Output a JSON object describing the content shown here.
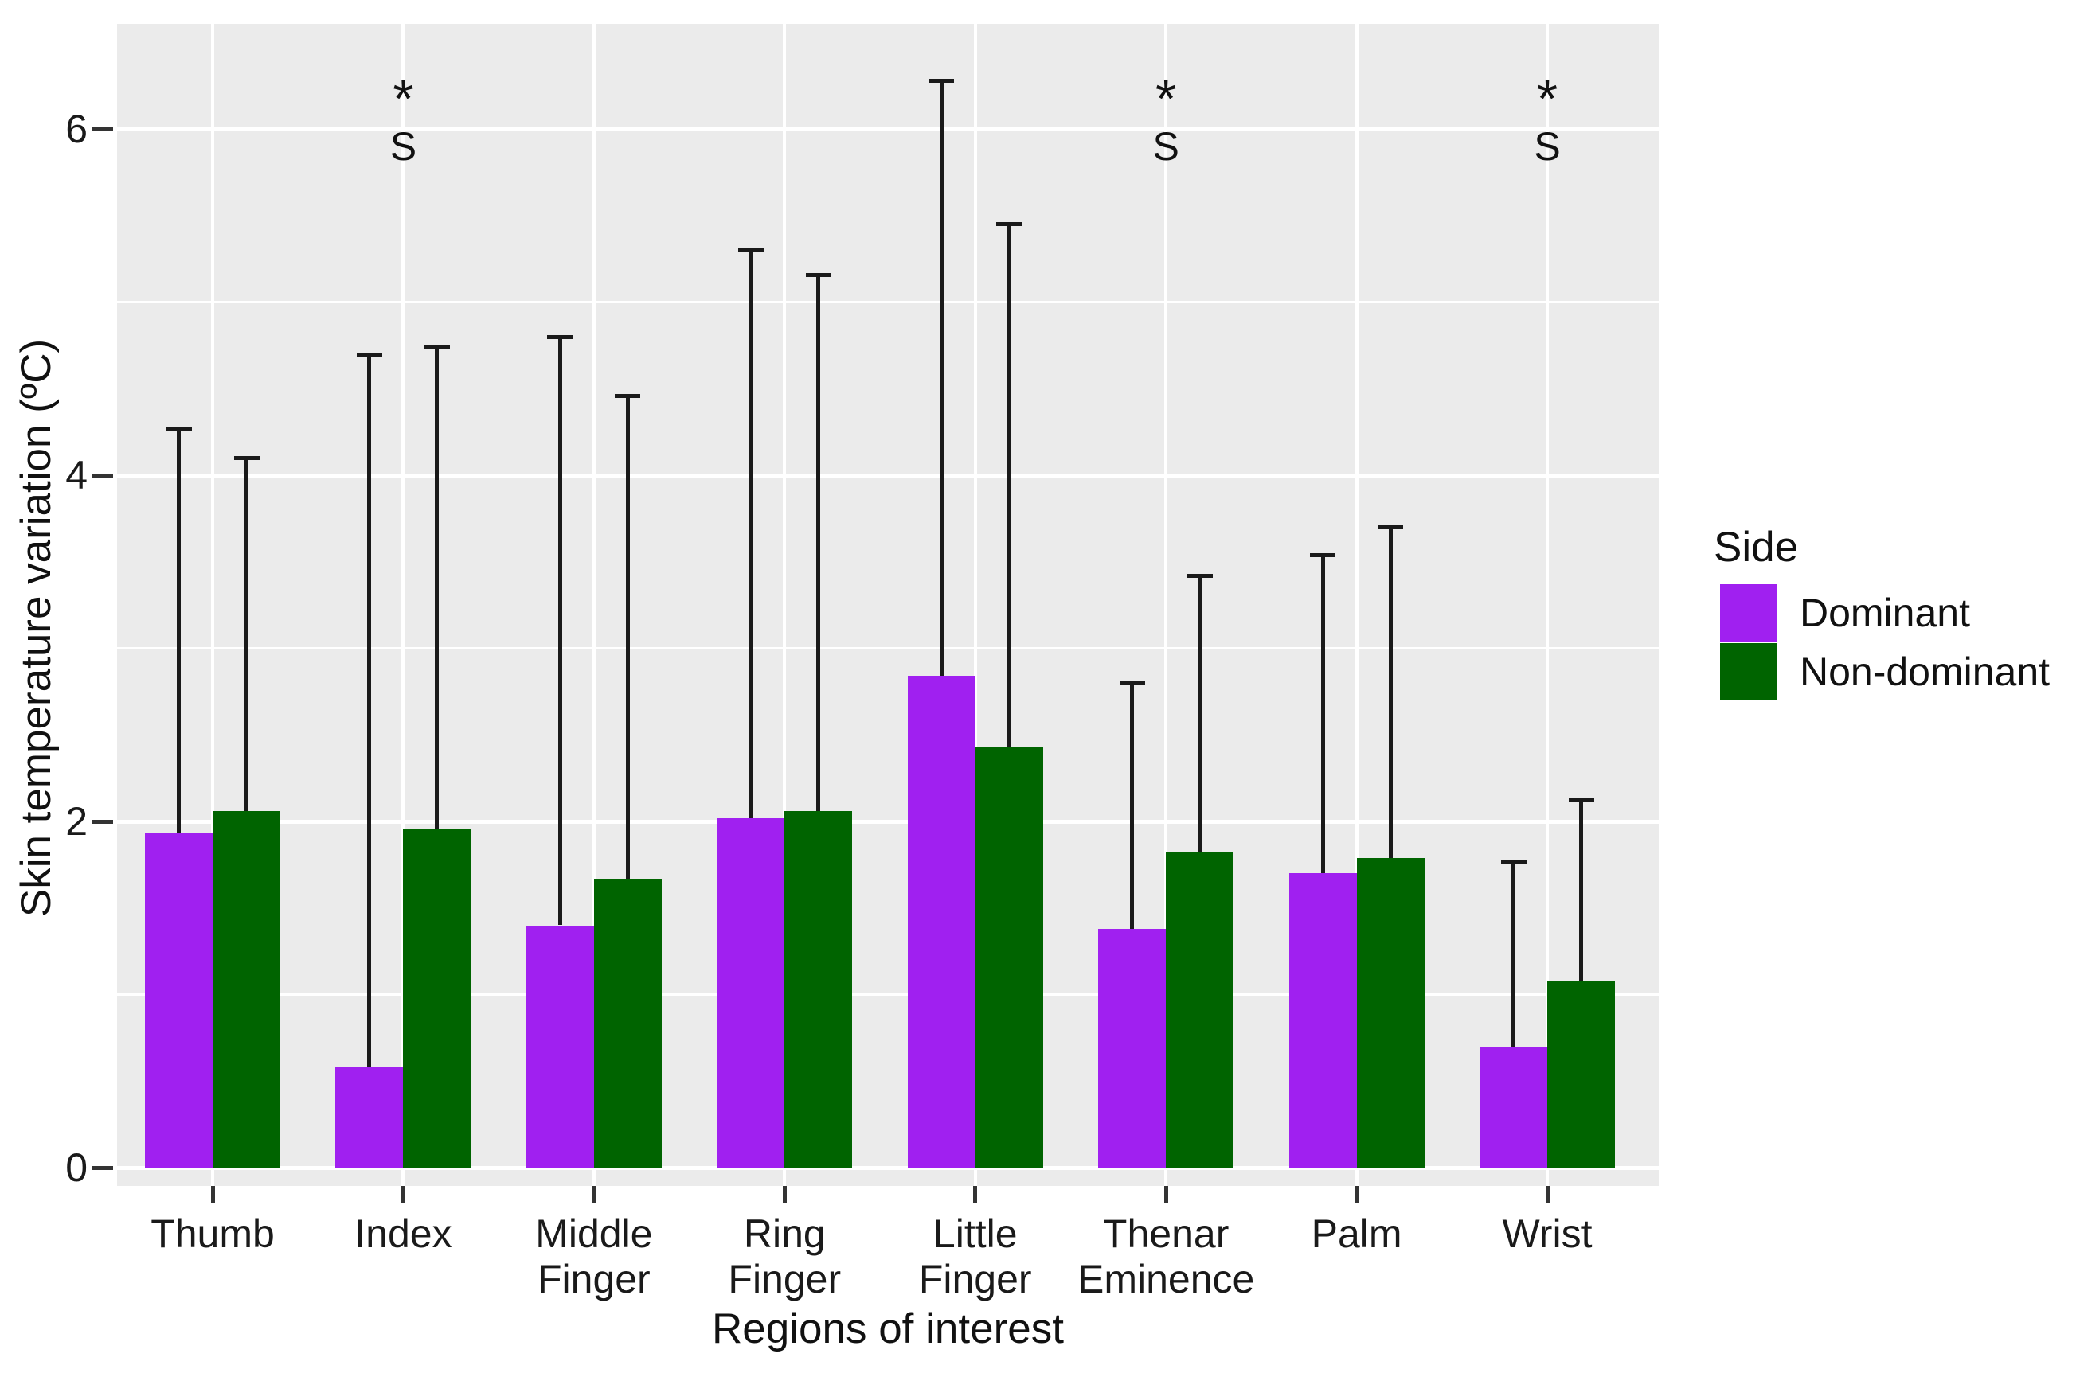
{
  "chart_data": {
    "type": "bar",
    "title": "",
    "xlabel": "Regions of interest",
    "ylabel": "Skin temperature variation (ºC)",
    "categories": [
      "Thumb",
      "Index",
      "Middle Finger",
      "Ring Finger",
      "Little Finger",
      "Thenar Eminence",
      "Palm",
      "Wrist"
    ],
    "category_label_lines": [
      [
        "Thumb"
      ],
      [
        "Index"
      ],
      [
        "Middle",
        "Finger"
      ],
      [
        "Ring",
        "Finger"
      ],
      [
        "Little",
        "Finger"
      ],
      [
        "Thenar",
        "Eminence"
      ],
      [
        "Palm"
      ],
      [
        "Wrist"
      ]
    ],
    "series": [
      {
        "name": "Dominant",
        "color": "#A020F0",
        "values": [
          1.93,
          0.58,
          1.4,
          2.02,
          2.84,
          1.38,
          1.7,
          0.7
        ],
        "error_top": [
          4.28,
          4.71,
          4.81,
          5.31,
          6.29,
          2.81,
          3.55,
          1.78
        ]
      },
      {
        "name": "Non-dominant",
        "color": "#006400",
        "values": [
          2.06,
          1.96,
          1.67,
          2.06,
          2.43,
          1.82,
          1.79,
          1.08
        ],
        "error_top": [
          4.11,
          4.75,
          4.47,
          5.17,
          5.46,
          3.43,
          3.71,
          2.14
        ]
      }
    ],
    "y_ticks": [
      "0",
      "2",
      "4",
      "6"
    ],
    "y_tick_values": [
      0,
      2,
      4,
      6
    ],
    "minor_grid_values": [
      1,
      3,
      5
    ],
    "ylim": [
      0,
      6.6
    ],
    "grid": "on",
    "legend": {
      "title": "Side",
      "position": "right",
      "entries": [
        {
          "label": "Dominant",
          "color": "#A020F0"
        },
        {
          "label": "Non-dominant",
          "color": "#006400"
        }
      ]
    },
    "annotations": [
      {
        "category": "Index",
        "symbol": "*",
        "letter": "S"
      },
      {
        "category": "Thenar Eminence",
        "symbol": "*",
        "letter": "S"
      },
      {
        "category": "Wrist",
        "symbol": "*",
        "letter": "S"
      }
    ],
    "colors": {
      "panel_background": "#EBEBEB",
      "gridline": "#FFFFFF",
      "error_bar": "#1A1A1A"
    }
  }
}
